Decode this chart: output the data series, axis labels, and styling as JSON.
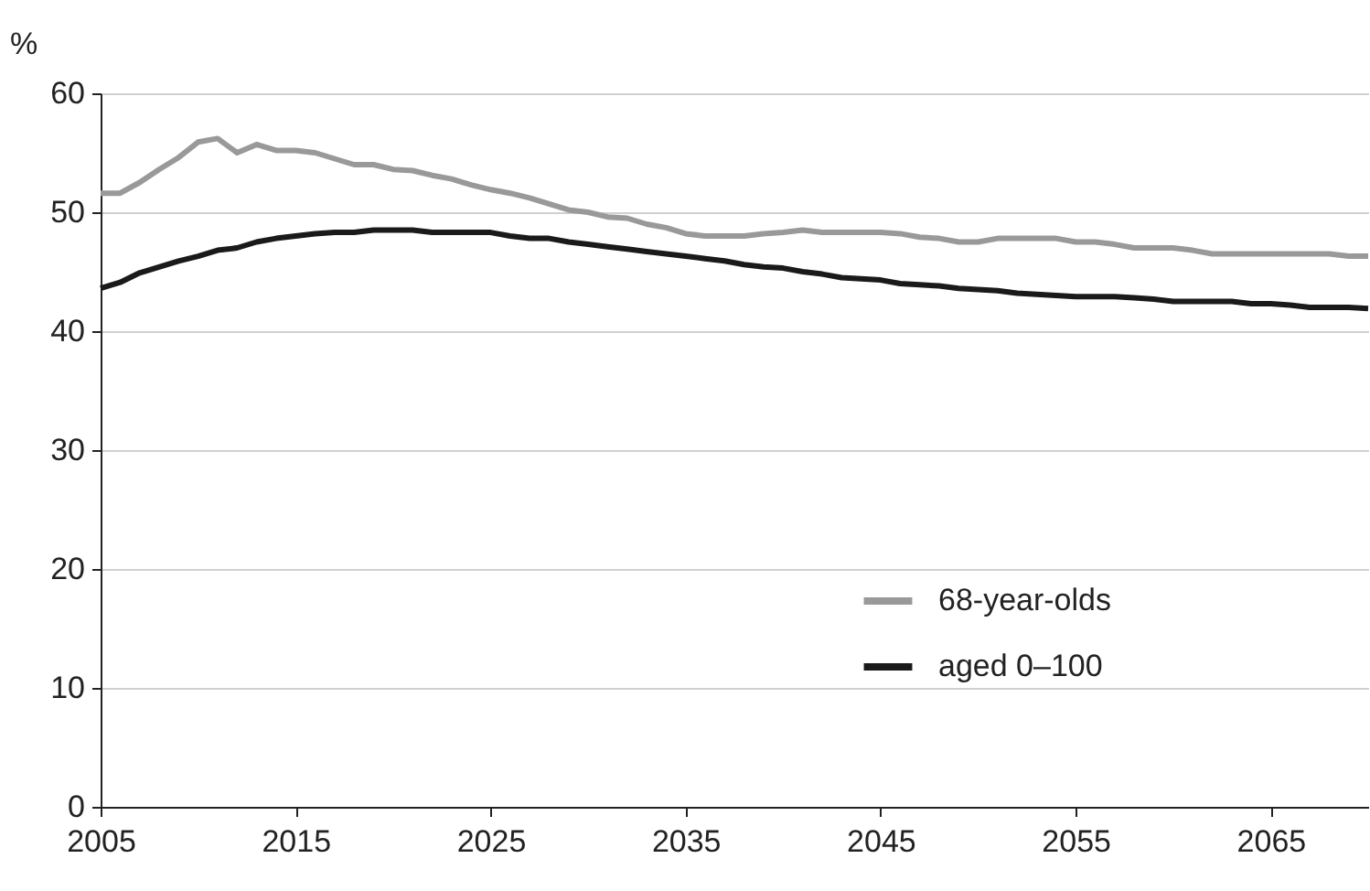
{
  "chart_data": {
    "type": "line",
    "ylabel": "%",
    "x": [
      2005,
      2006,
      2007,
      2008,
      2009,
      2010,
      2011,
      2012,
      2013,
      2014,
      2015,
      2016,
      2017,
      2018,
      2019,
      2020,
      2021,
      2022,
      2023,
      2024,
      2025,
      2026,
      2027,
      2028,
      2029,
      2030,
      2031,
      2032,
      2033,
      2034,
      2035,
      2036,
      2037,
      2038,
      2039,
      2040,
      2041,
      2042,
      2043,
      2044,
      2045,
      2046,
      2047,
      2048,
      2049,
      2050,
      2051,
      2052,
      2053,
      2054,
      2055,
      2056,
      2057,
      2058,
      2059,
      2060,
      2061,
      2062,
      2063,
      2064,
      2065,
      2066,
      2067,
      2068,
      2069,
      2070
    ],
    "series": [
      {
        "name": "68-year-olds",
        "color": "#999999",
        "values": [
          51.6,
          51.6,
          52.5,
          53.6,
          54.6,
          55.9,
          56.2,
          55.0,
          55.7,
          55.2,
          55.2,
          55.0,
          54.5,
          54.0,
          54.0,
          53.6,
          53.5,
          53.1,
          52.8,
          52.3,
          51.9,
          51.6,
          51.2,
          50.7,
          50.2,
          50.0,
          49.6,
          49.5,
          49.0,
          48.7,
          48.2,
          48.0,
          48.0,
          48.0,
          48.2,
          48.3,
          48.5,
          48.3,
          48.3,
          48.3,
          48.3,
          48.2,
          47.9,
          47.8,
          47.5,
          47.5,
          47.8,
          47.8,
          47.8,
          47.8,
          47.5,
          47.5,
          47.3,
          47.0,
          47.0,
          47.0,
          46.8,
          46.5,
          46.5,
          46.5,
          46.5,
          46.5,
          46.5,
          46.5,
          46.3,
          46.3
        ]
      },
      {
        "name": "aged 0–100",
        "color": "#1a1a1a",
        "values": [
          43.6,
          44.1,
          44.9,
          45.4,
          45.9,
          46.3,
          46.8,
          47.0,
          47.5,
          47.8,
          48.0,
          48.2,
          48.3,
          48.3,
          48.5,
          48.5,
          48.5,
          48.3,
          48.3,
          48.3,
          48.3,
          48.0,
          47.8,
          47.8,
          47.5,
          47.3,
          47.1,
          46.9,
          46.7,
          46.5,
          46.3,
          46.1,
          45.9,
          45.6,
          45.4,
          45.3,
          45.0,
          44.8,
          44.5,
          44.4,
          44.3,
          44.0,
          43.9,
          43.8,
          43.6,
          43.5,
          43.4,
          43.2,
          43.1,
          43.0,
          42.9,
          42.9,
          42.9,
          42.8,
          42.7,
          42.5,
          42.5,
          42.5,
          42.5,
          42.3,
          42.3,
          42.2,
          42.0,
          42.0,
          42.0,
          41.9
        ]
      }
    ],
    "xlim": [
      2005,
      2070
    ],
    "xticks": [
      2005,
      2015,
      2025,
      2035,
      2045,
      2055,
      2065
    ],
    "ylim": [
      0,
      60
    ],
    "yticks": [
      0,
      10,
      20,
      30,
      40,
      50,
      60
    ],
    "grid": "y",
    "legend": "bottom right"
  }
}
